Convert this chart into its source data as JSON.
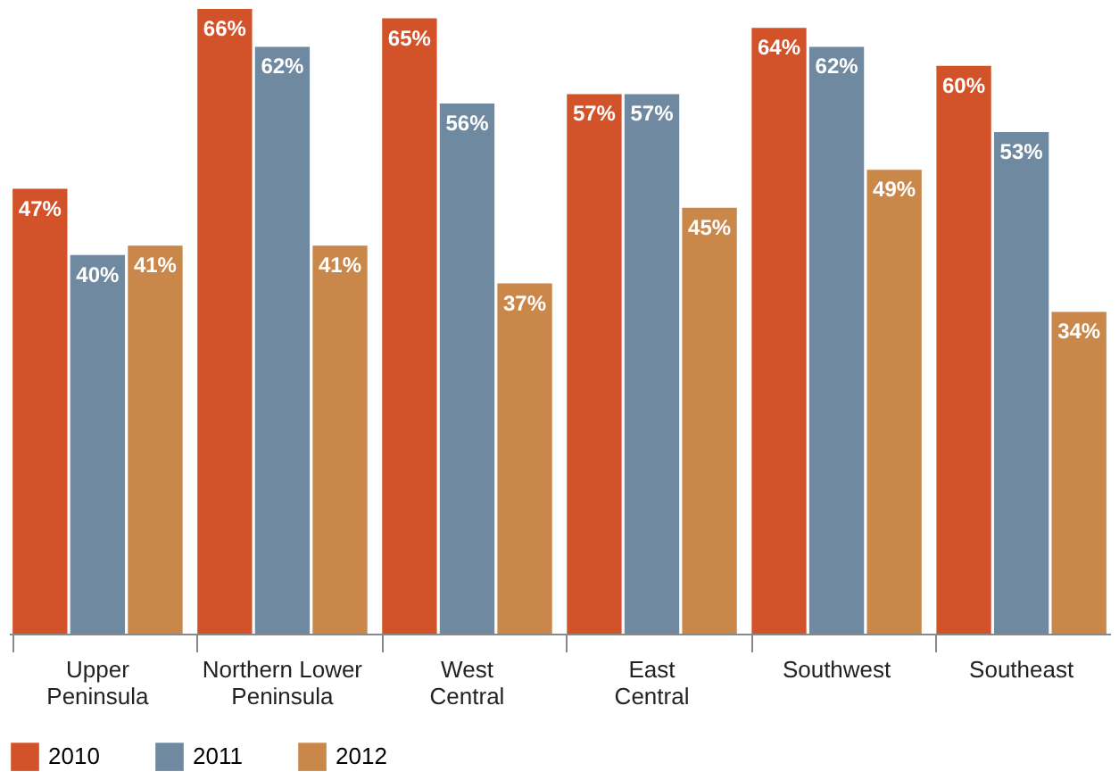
{
  "chart_data": {
    "type": "bar",
    "categories": [
      "Upper Peninsula",
      "Northern Lower Peninsula",
      "West Central",
      "East Central",
      "Southwest",
      "Southeast"
    ],
    "series": [
      {
        "name": "2010",
        "color": "#d2522a",
        "values": [
          47,
          66,
          65,
          57,
          64,
          60
        ],
        "value_labels": [
          "47%",
          "66%",
          "65%",
          "57%",
          "64%",
          "60%"
        ]
      },
      {
        "name": "2011",
        "color": "#6f8aa0",
        "values": [
          40,
          62,
          56,
          57,
          62,
          53
        ],
        "value_labels": [
          "40%",
          "62%",
          "56%",
          "57%",
          "62%",
          "53%"
        ]
      },
      {
        "name": "2012",
        "color": "#c9884a",
        "values": [
          41,
          41,
          37,
          45,
          49,
          34
        ],
        "value_labels": [
          "41%",
          "41%",
          "37%",
          "45%",
          "49%",
          "34%"
        ]
      }
    ],
    "ylim": [
      0,
      66
    ],
    "grid": false,
    "legend": "bottom"
  }
}
